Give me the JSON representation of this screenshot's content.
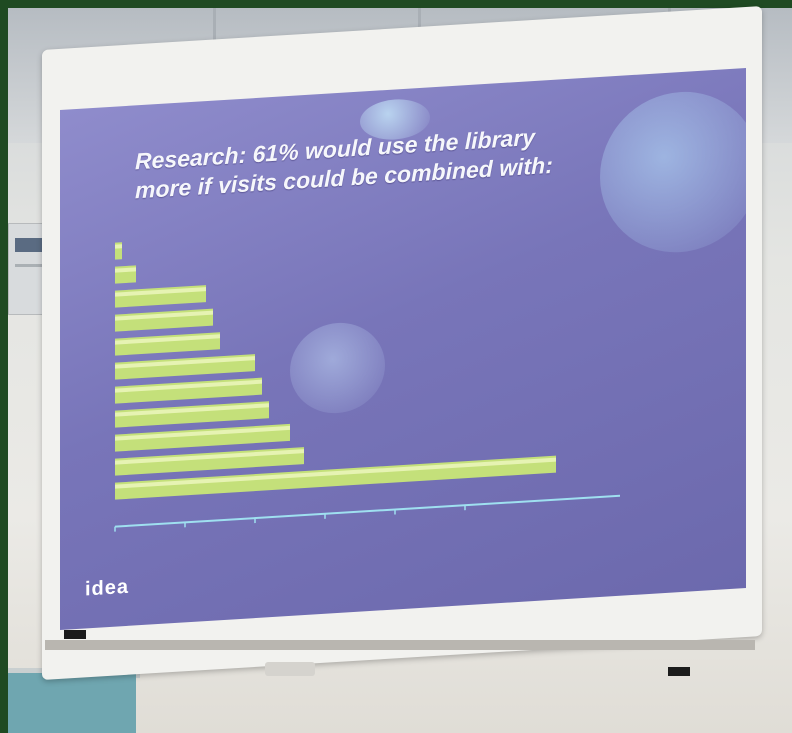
{
  "slide": {
    "title_line1": "Research: 61% would use the library",
    "title_line2": "more if visits could be combined with:",
    "logo_text": "idea"
  },
  "colors": {
    "slide_bg": "#7d7abf",
    "bar_fill": "#c4e07a",
    "bar_highlight": "#e6f3b3",
    "axis": "#9fe0f0",
    "frame": "#f2f2ef"
  },
  "chart_data": {
    "type": "bar",
    "orientation": "horizontal",
    "title": "",
    "categories": [
      "",
      "",
      "",
      "",
      "",
      "",
      "",
      "",
      "",
      "",
      "",
      ""
    ],
    "values": [
      1,
      3,
      13,
      14,
      15,
      20,
      21,
      22,
      25,
      27,
      63,
      0
    ],
    "xlim": [
      0,
      70
    ],
    "grid": false,
    "legend": "none"
  }
}
